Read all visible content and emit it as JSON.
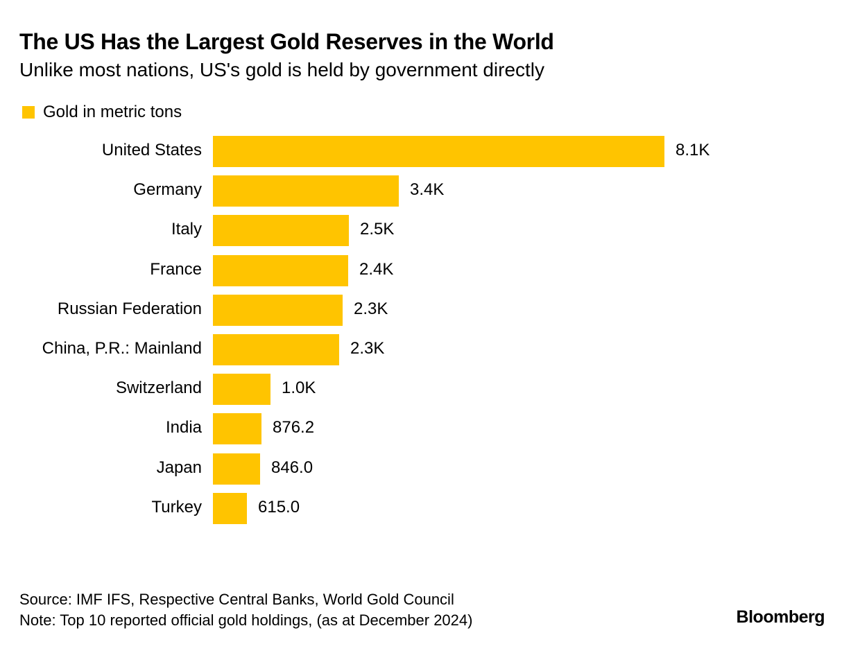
{
  "chart_data": {
    "type": "bar",
    "orientation": "horizontal",
    "title": "The US Has the Largest Gold Reserves in the World",
    "subtitle": "Unlike most nations, US's gold is held by government directly",
    "legend": [
      "Gold in metric tons"
    ],
    "legend_placement": "top-left",
    "categories": [
      "United States",
      "Germany",
      "Italy",
      "France",
      "Russian Federation",
      "China, P.R.: Mainland",
      "Switzerland",
      "India",
      "Japan",
      "Turkey"
    ],
    "values": [
      8133.5,
      3351.5,
      2451.8,
      2437.0,
      2332.7,
      2279.6,
      1039.9,
      876.2,
      846.0,
      615.0
    ],
    "value_labels": [
      "8.1K",
      "3.4K",
      "2.5K",
      "2.4K",
      "2.3K",
      "2.3K",
      "1.0K",
      "876.2",
      "846.0",
      "615.0"
    ],
    "xlim": [
      0,
      8133.5
    ],
    "grid": false,
    "color": "#FFC400"
  },
  "footer": {
    "source": "Source: IMF IFS, Respective Central Banks, World Gold Council",
    "note": "Note: Top 10 reported official gold holdings, (as at December 2024)",
    "brand": "Bloomberg"
  }
}
